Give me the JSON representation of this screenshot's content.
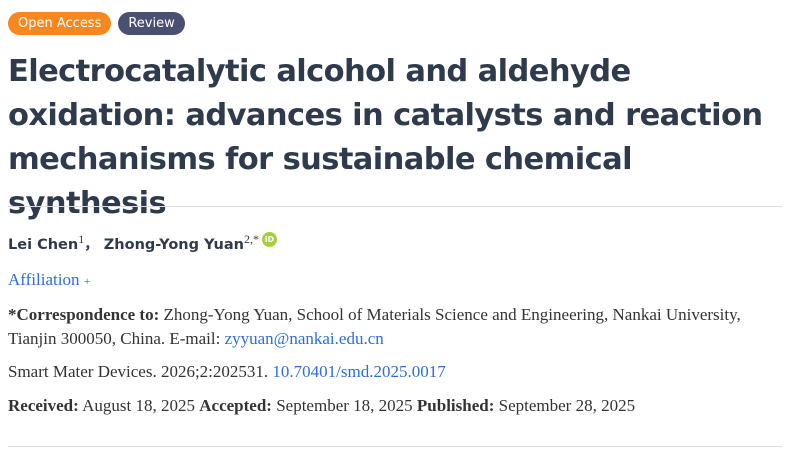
{
  "badges": {
    "open_access": "Open Access",
    "type": "Review"
  },
  "title": "Electrocatalytic alcohol and aldehyde oxidation: advances in catalysts and reaction mechanisms for sustainable chemical synthesis",
  "authors": [
    {
      "name": "Lei Chen",
      "sup": "1"
    },
    {
      "name": "Zhong-Yong Yuan",
      "sup": "2,*"
    }
  ],
  "author_separator": "，",
  "orcid_label": "iD",
  "affiliation_label": "Affiliation",
  "affiliation_toggle": "+",
  "correspondence": {
    "label": "*Correspondence to:",
    "text": " Zhong-Yong Yuan, School of Materials Science and Engineering, Nankai University, Tianjin 300050, China. E-mail: ",
    "email": "zyyuan@nankai.edu.cn"
  },
  "citation": {
    "text": "Smart Mater Devices. 2026;2:202531. ",
    "doi": "10.70401/smd.2025.0017"
  },
  "dates": {
    "received_label": "Received:",
    "received": " August 18, 2025 ",
    "accepted_label": "Accepted:",
    "accepted": " September 18, 2025 ",
    "published_label": "Published:",
    "published": " September 28, 2025"
  },
  "colors": {
    "open_access": "#f7871f",
    "review": "#4a5070",
    "link": "#2a6fdb",
    "orcid": "#a6ce39"
  }
}
